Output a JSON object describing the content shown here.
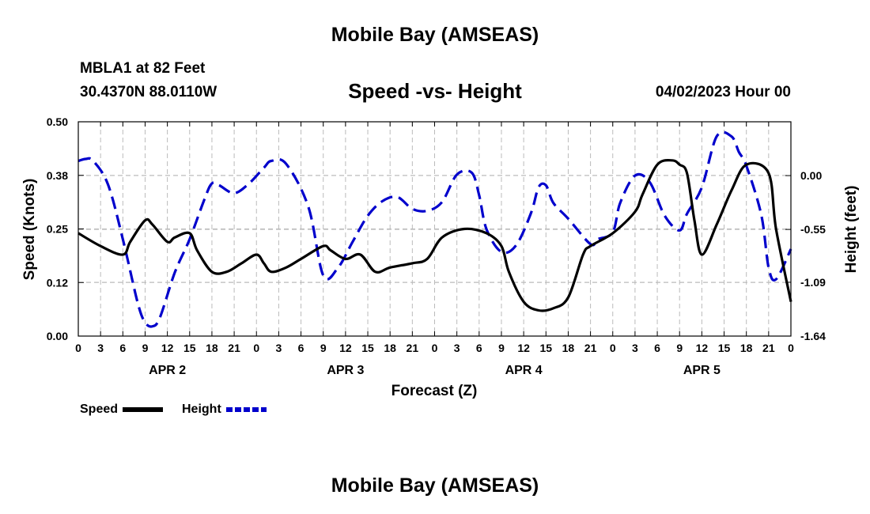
{
  "header": {
    "title": "Mobile Bay (AMSEAS)",
    "station": "MBLA1 at 82 Feet",
    "location": "30.4370N  88.0110W",
    "datetime": "04/02/2023 Hour 00",
    "footer_title": "Mobile Bay (AMSEAS)"
  },
  "colors": {
    "speed": "#000000",
    "height": "#0000cc",
    "grid": "#bbbbbb"
  },
  "chart_data": {
    "type": "line",
    "title": "Speed -vs- Height",
    "xlabel": "Forecast (Z)",
    "ylabel": "Speed (Knots)",
    "y2label": "Height (feet)",
    "x_ticks": [
      "0",
      "3",
      "6",
      "9",
      "12",
      "15",
      "18",
      "21",
      "0",
      "3",
      "6",
      "9",
      "12",
      "15",
      "18",
      "21",
      "0",
      "3",
      "6",
      "9",
      "12",
      "15",
      "18",
      "21",
      "0",
      "3",
      "6",
      "9",
      "12",
      "15",
      "18",
      "21",
      "0"
    ],
    "day_labels": [
      {
        "label": "APR 2",
        "hour": 12
      },
      {
        "label": "APR 3",
        "hour": 36
      },
      {
        "label": "APR 4",
        "hour": 60
      },
      {
        "label": "APR 5",
        "hour": 84
      }
    ],
    "xlim": [
      0,
      96
    ],
    "ylim": [
      0,
      0.5
    ],
    "y_ticks": [
      "0.00",
      "0.12",
      "0.25",
      "0.38",
      "0.50"
    ],
    "y2lim": [
      -1.64,
      0.55
    ],
    "y2_ticks": [
      "0.00",
      "-0.55",
      "-1.09",
      "-1.64"
    ],
    "series": [
      {
        "name": "Speed",
        "axis": "left",
        "style": "solid",
        "x": [
          0,
          3,
          6,
          7,
          9,
          10,
          12,
          13,
          15,
          16,
          18,
          20,
          22,
          24,
          25,
          26,
          28,
          30,
          33,
          34,
          36,
          38,
          40,
          42,
          45,
          47,
          49,
          52,
          55,
          57,
          58,
          60,
          62,
          64,
          66,
          68,
          69,
          72,
          75,
          76,
          78,
          80,
          81,
          82,
          83,
          84,
          86,
          88,
          90,
          93,
          94,
          96
        ],
        "y": [
          0.24,
          0.21,
          0.19,
          0.22,
          0.27,
          0.26,
          0.22,
          0.23,
          0.24,
          0.2,
          0.15,
          0.15,
          0.17,
          0.19,
          0.17,
          0.15,
          0.16,
          0.18,
          0.21,
          0.2,
          0.18,
          0.19,
          0.15,
          0.16,
          0.17,
          0.18,
          0.23,
          0.25,
          0.24,
          0.21,
          0.15,
          0.08,
          0.06,
          0.065,
          0.09,
          0.19,
          0.21,
          0.24,
          0.29,
          0.33,
          0.4,
          0.41,
          0.4,
          0.38,
          0.27,
          0.19,
          0.26,
          0.34,
          0.4,
          0.38,
          0.25,
          0.08
        ]
      },
      {
        "name": "Height",
        "axis": "right",
        "style": "dashed",
        "x": [
          0,
          1,
          2,
          4,
          6,
          8,
          9,
          10,
          11,
          13,
          15,
          17,
          18,
          19,
          21,
          23,
          25,
          26,
          28,
          31,
          33,
          35,
          37,
          39,
          41,
          43,
          45,
          47,
          49,
          51,
          53,
          54,
          55,
          57,
          59,
          61,
          62,
          63,
          64,
          66,
          69,
          70,
          72,
          73,
          75,
          77,
          79,
          81,
          82,
          84,
          86,
          88,
          89,
          90,
          92,
          93,
          94,
          96
        ],
        "y": [
          0.15,
          0.17,
          0.15,
          -0.09,
          -0.65,
          -1.3,
          -1.5,
          -1.54,
          -1.45,
          -0.99,
          -0.65,
          -0.24,
          -0.08,
          -0.1,
          -0.18,
          -0.08,
          0.08,
          0.15,
          0.12,
          -0.32,
          -1.02,
          -0.94,
          -0.67,
          -0.41,
          -0.26,
          -0.22,
          -0.34,
          -0.36,
          -0.27,
          0.01,
          0.03,
          -0.2,
          -0.55,
          -0.78,
          -0.71,
          -0.38,
          -0.12,
          -0.1,
          -0.28,
          -0.44,
          -0.7,
          -0.65,
          -0.58,
          -0.28,
          0.0,
          -0.07,
          -0.41,
          -0.56,
          -0.39,
          -0.12,
          0.4,
          0.4,
          0.24,
          0.1,
          -0.4,
          -0.94,
          -1.06,
          -0.75
        ]
      }
    ],
    "legend": [
      {
        "name": "Speed",
        "color": "#000000",
        "style": "solid"
      },
      {
        "name": "Height",
        "color": "#0000cc",
        "style": "dashed"
      }
    ]
  }
}
